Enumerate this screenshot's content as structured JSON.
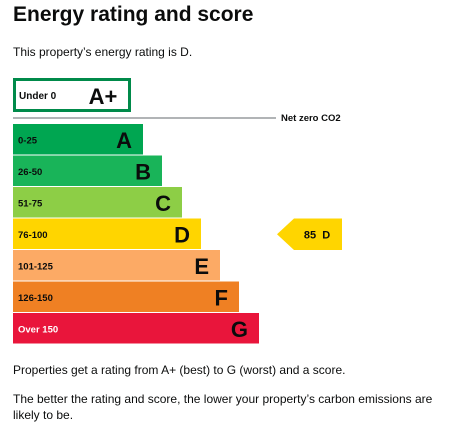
{
  "page": {
    "title": "Energy rating and score",
    "intro": "This property’s energy rating is D.",
    "footer_1": "Properties get a rating from A+ (best) to G (worst) and a score.",
    "footer_2": "The better the rating and score, the lower your property’s carbon emissions are likely to be."
  },
  "chart_data": {
    "type": "bar",
    "categories": [
      "Under 0",
      "0-25",
      "26-50",
      "51-75",
      "76-100",
      "101-125",
      "126-150",
      "Over 150"
    ],
    "series": [
      {
        "values": [
          "A+",
          "A",
          "B",
          "C",
          "D",
          "E",
          "F",
          "G"
        ]
      }
    ],
    "colors": [
      "#ffffff",
      "#00a651",
      "#19b459",
      "#8dce46",
      "#ffd500",
      "#fcaa65",
      "#ef8023",
      "#e9153b"
    ],
    "outline_color_top_band": "#008a4a",
    "reference_line": {
      "label": "Net zero CO2"
    },
    "current": {
      "score": 85,
      "rating": "D",
      "label": "85  D",
      "color": "#ffd500"
    }
  }
}
